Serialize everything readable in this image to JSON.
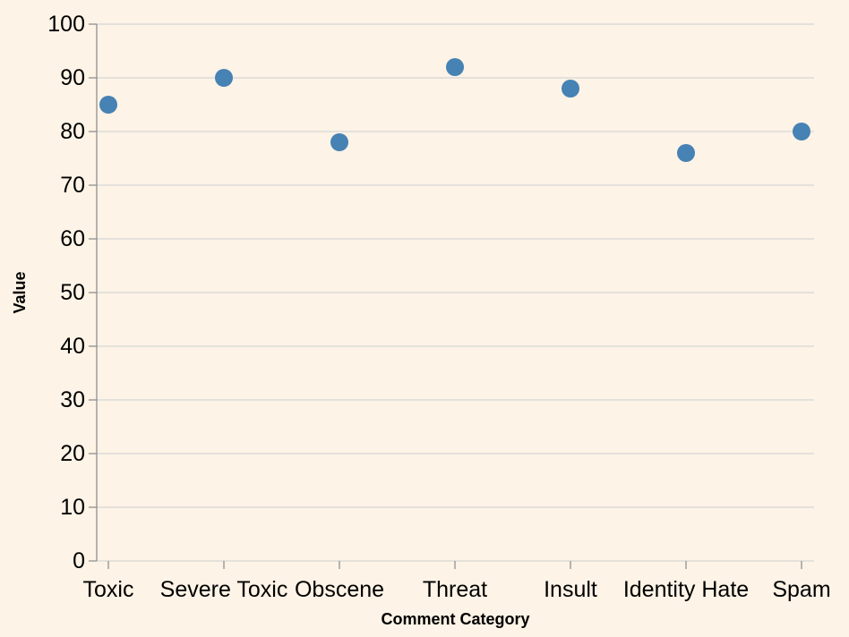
{
  "chart_data": {
    "type": "scatter",
    "categories": [
      "Toxic",
      "Severe Toxic",
      "Obscene",
      "Threat",
      "Insult",
      "Identity Hate",
      "Spam"
    ],
    "values": [
      85,
      90,
      78,
      92,
      88,
      76,
      80
    ],
    "xlabel": "Comment Category",
    "ylabel": "Value",
    "ylim": [
      0,
      100
    ],
    "yticks": [
      0,
      10,
      20,
      30,
      40,
      50,
      60,
      70,
      80,
      90,
      100
    ],
    "grid": true,
    "colors": {
      "background": "#fdf3e6",
      "point": "#4682b4"
    }
  }
}
